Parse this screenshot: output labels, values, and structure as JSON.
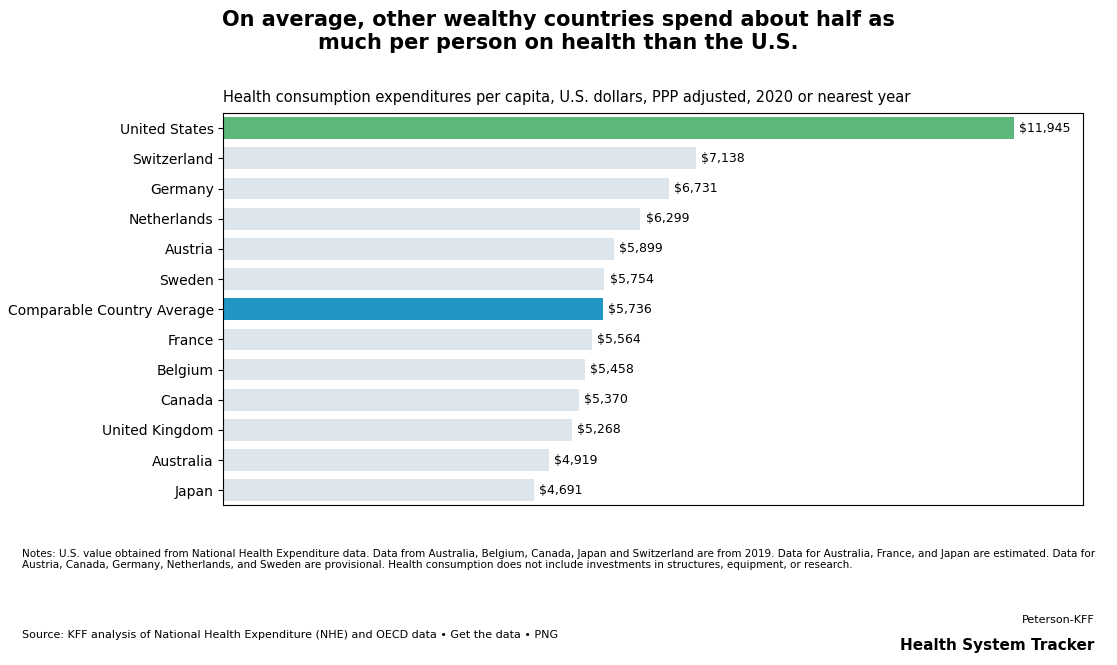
{
  "chart_data": {
    "type": "bar",
    "orientation": "horizontal",
    "title": "On average, other wealthy countries spend about half as\nmuch per person on health than the U.S.",
    "subtitle": "Health consumption expenditures per capita, U.S. dollars, PPP adjusted, 2020 or nearest year",
    "categories": [
      "Japan",
      "Australia",
      "United Kingdom",
      "Canada",
      "Belgium",
      "France",
      "Comparable Country Average",
      "Sweden",
      "Austria",
      "Netherlands",
      "Germany",
      "Switzerland",
      "United States"
    ],
    "values": [
      4691,
      4919,
      5268,
      5370,
      5458,
      5564,
      5736,
      5754,
      5899,
      6299,
      6731,
      7138,
      11945
    ],
    "value_labels": [
      "$4,691",
      "$4,919",
      "$5,268",
      "$5,370",
      "$5,458",
      "$5,564",
      "$5,736",
      "$5,754",
      "$5,899",
      "$6,299",
      "$6,731",
      "$7,138",
      "$11,945"
    ],
    "colors": [
      "#dde5ed",
      "#dde5ed",
      "#dde5ed",
      "#dde5ed",
      "#dde5ed",
      "#dde5ed",
      "#2196c4",
      "#dde5ed",
      "#dde5ed",
      "#dde5ed",
      "#dde5ed",
      "#dde5ed",
      "#5cb87a"
    ],
    "data_labels": true,
    "tick_labels": "y",
    "xlim": [
      0,
      13000
    ],
    "grid": false,
    "annotations": [
      "Notes: U.S. value obtained from National Health Expenditure data. Data from Australia, Belgium, Canada, Japan and Switzerland are from 2019. Data for Australia, France, and Japan are estimated. Data for\nAustria, Canada, Germany, Netherlands, and Sweden are provisional. Health consumption does not include investments in structures, equipment, or research.",
      "Source: KFF analysis of National Health Expenditure (NHE) and OECD data • Get the data • PNG",
      "Peterson-KFF",
      "Health System Tracker"
    ]
  }
}
